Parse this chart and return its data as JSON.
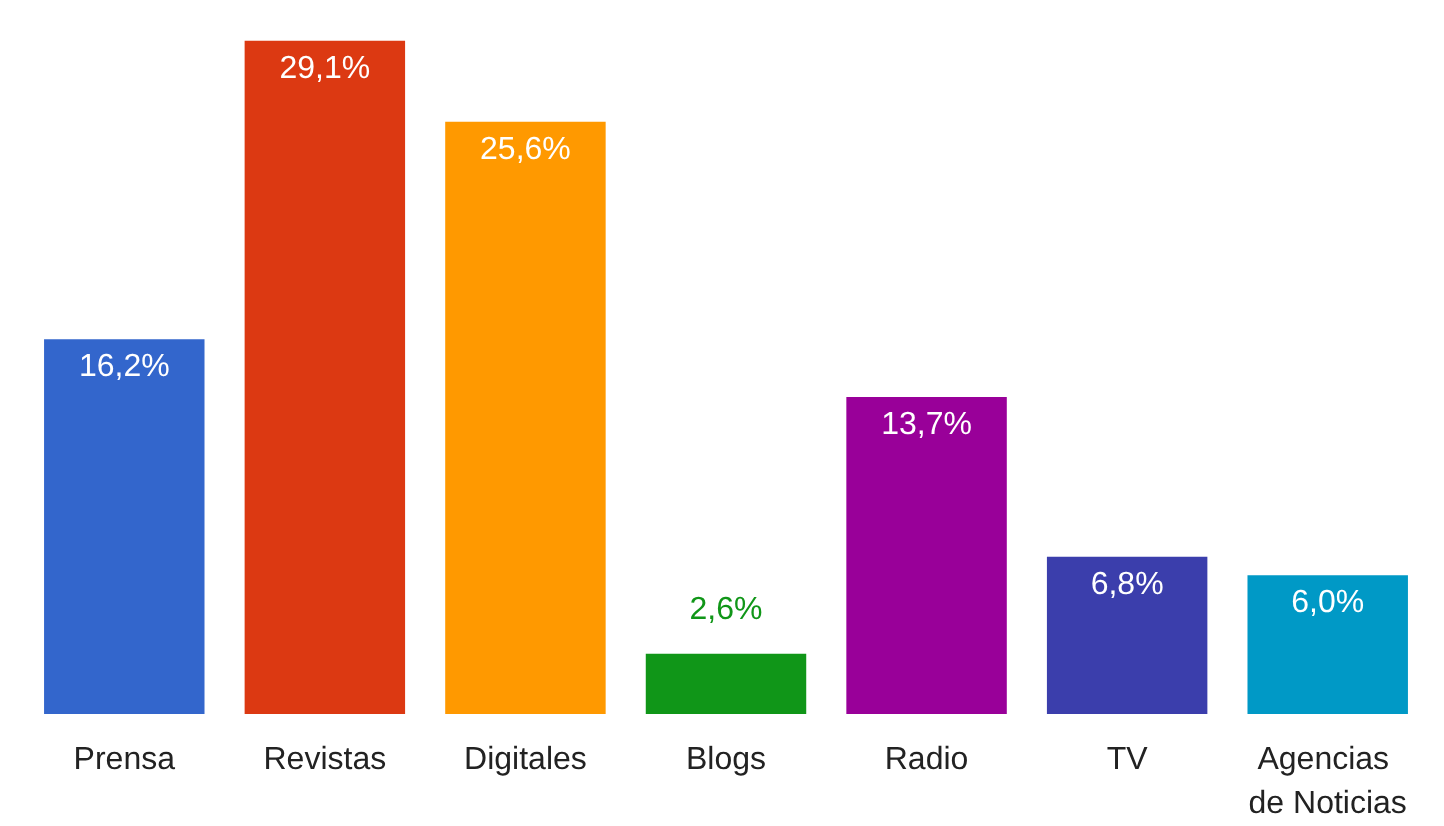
{
  "chart_data": {
    "type": "bar",
    "categories": [
      "Prensa",
      "Revistas",
      "Digitales",
      "Blogs",
      "Radio",
      "TV",
      "Agencias de Noticias"
    ],
    "values": [
      16.2,
      29.1,
      25.6,
      2.6,
      13.7,
      6.8,
      6.0
    ],
    "colors": [
      "#3366cc",
      "#dc3912",
      "#ff9900",
      "#109618",
      "#990099",
      "#3b3eac",
      "#0099c6"
    ],
    "value_labels": [
      "16,2%",
      "29,1%",
      "25,6%",
      "2,6%",
      "13,7%",
      "6,8%",
      "6,0%"
    ],
    "data_labels": false
  }
}
